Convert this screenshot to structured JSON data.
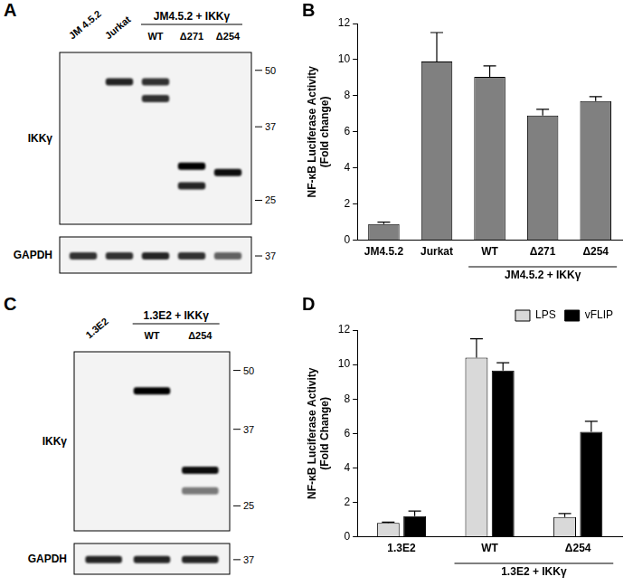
{
  "chart_data": [
    {
      "panel": "B",
      "type": "bar",
      "categories": [
        "JM4.5.2",
        "Jurkat",
        "WT",
        "Δ271",
        "Δ254"
      ],
      "values": [
        0.9,
        9.9,
        9.05,
        6.9,
        7.7
      ],
      "errors": [
        0.1,
        1.6,
        0.6,
        0.35,
        0.25
      ],
      "color": "#808080",
      "ylim": [
        0,
        12
      ],
      "yticks": [
        0,
        2,
        4,
        6,
        8,
        10,
        12
      ],
      "y_label": [
        "NF-κB Luciferase Activity",
        "(Fold change)"
      ],
      "group": {
        "label": "JM4.5.2 + IKKγ",
        "members": [
          "WT",
          "Δ271",
          "Δ254"
        ]
      },
      "grid": false
    },
    {
      "panel": "D",
      "type": "bar",
      "categories": [
        "1.3E2",
        "WT",
        "Δ254"
      ],
      "series": [
        {
          "name": "LPS",
          "color": "#d9d9d9",
          "values": [
            0.8,
            10.4,
            1.15
          ],
          "errors": [
            0.05,
            1.1,
            0.2
          ]
        },
        {
          "name": "vFLIP",
          "color": "#000000",
          "values": [
            1.2,
            9.65,
            6.1
          ],
          "errors": [
            0.3,
            0.45,
            0.6
          ]
        }
      ],
      "ylim": [
        0,
        12
      ],
      "yticks": [
        0,
        2,
        4,
        6,
        8,
        10,
        12
      ],
      "y_label": [
        "NF-κB Luciferase Activity",
        "(Fold Change)"
      ],
      "group": {
        "label": "1.3E2 + IKKγ",
        "members": [
          "WT",
          "Δ254"
        ]
      },
      "legend": "top-right",
      "grid": false
    }
  ],
  "blots": [
    {
      "panel": "A",
      "lanes": [
        "JM 4.5.2",
        "Jurkat",
        "WT",
        "Δ271",
        "Δ254"
      ],
      "group": {
        "label": "JM4.5.2 + IKKγ",
        "members": [
          "WT",
          "Δ271",
          "Δ254"
        ]
      },
      "rows": [
        {
          "label": "IKKγ",
          "kda_range": [
            55,
            22
          ],
          "markers": [
            50,
            37,
            25
          ],
          "bands": [
            [],
            [
              {
                "kda": 47,
                "intensity": 0.85
              }
            ],
            [
              {
                "kda": 47,
                "intensity": 0.8
              },
              {
                "kda": 43,
                "intensity": 0.8
              }
            ],
            [
              {
                "kda": 30,
                "intensity": 1
              },
              {
                "kda": 27,
                "intensity": 0.85
              }
            ],
            [
              {
                "kda": 29,
                "intensity": 0.95
              }
            ]
          ]
        },
        {
          "label": "GAPDH",
          "kda_range": [
            42,
            33
          ],
          "markers": [
            37
          ],
          "bands": [
            [
              {
                "kda": 37,
                "intensity": 0.8
              }
            ],
            [
              {
                "kda": 37,
                "intensity": 0.8
              }
            ],
            [
              {
                "kda": 37,
                "intensity": 0.85
              }
            ],
            [
              {
                "kda": 37,
                "intensity": 0.8
              }
            ],
            [
              {
                "kda": 37,
                "intensity": 0.6
              }
            ]
          ]
        }
      ]
    },
    {
      "panel": "C",
      "lanes": [
        "1.3E2",
        "WT",
        "Δ254"
      ],
      "group": {
        "label": "1.3E2 + IKKγ",
        "members": [
          "WT",
          "Δ254"
        ]
      },
      "rows": [
        {
          "label": "IKKγ",
          "kda_range": [
            55,
            22
          ],
          "markers": [
            50,
            37,
            25
          ],
          "bands": [
            [],
            [
              {
                "kda": 45,
                "intensity": 1
              }
            ],
            [
              {
                "kda": 30,
                "intensity": 0.95
              },
              {
                "kda": 27,
                "intensity": 0.5
              }
            ]
          ]
        },
        {
          "label": "GAPDH",
          "kda_range": [
            42,
            33
          ],
          "markers": [
            37
          ],
          "bands": [
            [
              {
                "kda": 37,
                "intensity": 0.85
              }
            ],
            [
              {
                "kda": 37,
                "intensity": 0.85
              }
            ],
            [
              {
                "kda": 37,
                "intensity": 0.85
              }
            ]
          ]
        }
      ]
    }
  ]
}
